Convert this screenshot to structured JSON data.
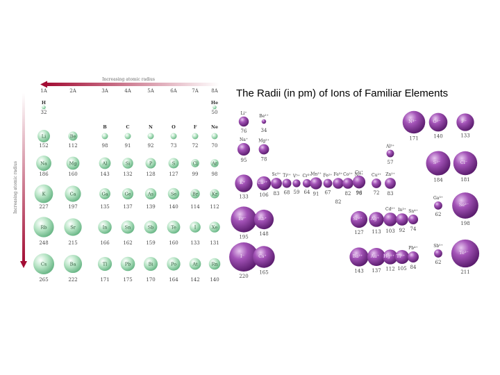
{
  "slide_title": "The Radii (in pm) of Ions of Familiar Elements",
  "atomic_table": {
    "top_arrow_label": "Increasing atomic radius",
    "side_arrow_label": "Increasing atomic radius",
    "groups": [
      "1A",
      "2A",
      "3A",
      "4A",
      "5A",
      "6A",
      "7A",
      "8A"
    ],
    "h_he": [
      {
        "symbol": "H",
        "radius": "32"
      },
      {
        "symbol": "He",
        "radius": "50"
      }
    ],
    "rows": [
      [
        {
          "s": "Li",
          "r": "152"
        },
        {
          "s": "Be",
          "r": "112"
        },
        {
          "s": "B",
          "r": "98"
        },
        {
          "s": "C",
          "r": "91"
        },
        {
          "s": "N",
          "r": "92"
        },
        {
          "s": "O",
          "r": "73"
        },
        {
          "s": "F",
          "r": "72"
        },
        {
          "s": "Ne",
          "r": "70"
        }
      ],
      [
        {
          "s": "Na",
          "r": "186"
        },
        {
          "s": "Mg",
          "r": "160"
        },
        {
          "s": "Al",
          "r": "143"
        },
        {
          "s": "Si",
          "r": "132"
        },
        {
          "s": "P",
          "r": "128"
        },
        {
          "s": "S",
          "r": "127"
        },
        {
          "s": "Cl",
          "r": "99"
        },
        {
          "s": "Ar",
          "r": "98"
        }
      ],
      [
        {
          "s": "K",
          "r": "227"
        },
        {
          "s": "Ca",
          "r": "197"
        },
        {
          "s": "Ga",
          "r": "135"
        },
        {
          "s": "Ge",
          "r": "137"
        },
        {
          "s": "As",
          "r": "139"
        },
        {
          "s": "Se",
          "r": "140"
        },
        {
          "s": "Br",
          "r": "114"
        },
        {
          "s": "Kr",
          "r": "112"
        }
      ],
      [
        {
          "s": "Rb",
          "r": "248"
        },
        {
          "s": "Sr",
          "r": "215"
        },
        {
          "s": "In",
          "r": "166"
        },
        {
          "s": "Sn",
          "r": "162"
        },
        {
          "s": "Sb",
          "r": "159"
        },
        {
          "s": "Te",
          "r": "160"
        },
        {
          "s": "I",
          "r": "133"
        },
        {
          "s": "Xe",
          "r": "131"
        }
      ],
      [
        {
          "s": "Cs",
          "r": "265"
        },
        {
          "s": "Ba",
          "r": "222"
        },
        {
          "s": "Tl",
          "r": "171"
        },
        {
          "s": "Pb",
          "r": "175"
        },
        {
          "s": "Bi",
          "r": "170"
        },
        {
          "s": "Po",
          "r": "164"
        },
        {
          "s": "At",
          "r": "142"
        },
        {
          "s": "Rn",
          "r": "140"
        }
      ]
    ]
  },
  "ion_chart": {
    "ions": [
      {
        "label": "Li⁺",
        "r": "76",
        "v": 76
      },
      {
        "label": "Be²⁺",
        "r": "34",
        "v": 34
      },
      {
        "label": "N³⁻",
        "r": "171",
        "v": 171
      },
      {
        "label": "O²⁻",
        "r": "140",
        "v": 140
      },
      {
        "label": "F⁻",
        "r": "133",
        "v": 133
      },
      {
        "label": "Na⁺",
        "r": "95",
        "v": 95
      },
      {
        "label": "Mg²⁺",
        "r": "78",
        "v": 78
      },
      {
        "label": "Al³⁺",
        "r": "57",
        "v": 57
      },
      {
        "label": "S²⁻",
        "r": "184",
        "v": 184
      },
      {
        "label": "Cl⁻",
        "r": "181",
        "v": 181
      },
      {
        "label": "K⁺",
        "r": "133",
        "v": 133
      },
      {
        "label": "Ca²⁺",
        "r": "106",
        "v": 106
      },
      {
        "label": "Sc³⁺",
        "r": "83",
        "v": 83
      },
      {
        "label": "Ti³⁺",
        "r": "68",
        "v": 68
      },
      {
        "label": "V⁵⁺",
        "r": "59",
        "v": 59
      },
      {
        "label": "Cr³⁺",
        "r": "64",
        "v": 64
      },
      {
        "label": "Mn²⁺",
        "r": "91",
        "v": 91
      },
      {
        "label": "Fe²⁺",
        "r": "67",
        "v": 67
      },
      {
        "label": "Fe³⁺",
        "r": "82",
        "v": 82
      },
      {
        "label": "Co²⁺",
        "r": "82",
        "v": 82
      },
      {
        "label": "Ni²⁺",
        "r": "78",
        "v": 78
      },
      {
        "label": "Cu⁺",
        "r": "96",
        "v": 96
      },
      {
        "label": "Cu²⁺",
        "r": "72",
        "v": 72
      },
      {
        "label": "Zn²⁺",
        "r": "83",
        "v": 83
      },
      {
        "label": "Ga³⁺",
        "r": "62",
        "v": 62
      },
      {
        "label": "Se²⁻",
        "r": "198",
        "v": 198
      },
      {
        "label": "Br⁻",
        "r": "195",
        "v": 195
      },
      {
        "label": "Rb⁺",
        "r": "148",
        "v": 148
      },
      {
        "label": "Sr²⁺",
        "r": "127",
        "v": 127
      },
      {
        "label": "Ag⁺",
        "r": "113",
        "v": 113
      },
      {
        "label": "Cd²⁺",
        "r": "103",
        "v": 103
      },
      {
        "label": "In³⁺",
        "r": "92",
        "v": 92
      },
      {
        "label": "Sn⁴⁺",
        "r": "74",
        "v": 74
      },
      {
        "label": "Sb⁵⁺",
        "r": "62",
        "v": 62
      },
      {
        "label": "Te²⁻",
        "r": "211",
        "v": 211
      },
      {
        "label": "I⁻",
        "r": "220",
        "v": 220
      },
      {
        "label": "Cs⁺",
        "r": "165",
        "v": 165
      },
      {
        "label": "Ba²⁺",
        "r": "143",
        "v": 143
      },
      {
        "label": "Au⁺",
        "r": "137",
        "v": 137
      },
      {
        "label": "Hg²⁺",
        "r": "112",
        "v": 112
      },
      {
        "label": "Tl³⁺",
        "r": "105",
        "v": 105
      },
      {
        "label": "Pb⁴⁺",
        "r": "84",
        "v": 84
      }
    ]
  },
  "colors": {
    "atom_sphere": "#8fd1a8",
    "ion_sphere": "#7b2c8e",
    "arrow": "#b5123a"
  }
}
